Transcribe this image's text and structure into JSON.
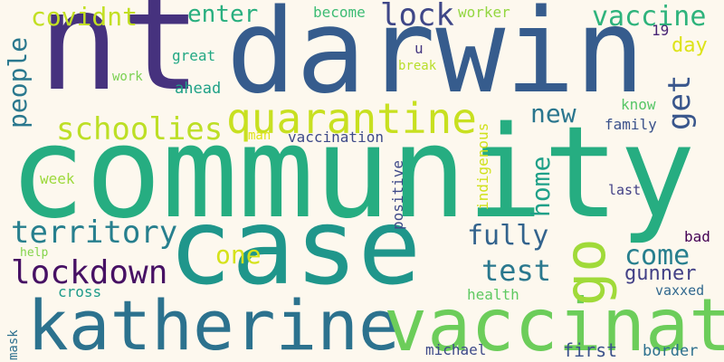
{
  "words": {
    "nt": "nt",
    "darwin": "darwin",
    "community": "community",
    "case": "case",
    "katherine": "katherine",
    "vaccinate": "vaccinate",
    "quarantine": "quarantine",
    "lockdown": "lockdown",
    "schoolies": "schoolies",
    "go": "go",
    "territory": "territory",
    "people": "people",
    "covidnt": "covidnt",
    "enter": "enter",
    "lock": "lock",
    "vaccine": "vaccine",
    "get": "get",
    "new": "new",
    "home": "home",
    "fully": "fully",
    "test": "test",
    "come": "come",
    "one": "one",
    "gunner": "gunner",
    "become": "become",
    "worker": "worker",
    "n19": "19",
    "day": "day",
    "u": "u",
    "great": "great",
    "work": "work",
    "ahead": "ahead",
    "break": "break",
    "know": "know",
    "family": "family",
    "man": "man",
    "vaccination": "vaccination",
    "indigenous": "indigenous",
    "week": "week",
    "positive": "positive",
    "last": "last",
    "help": "help",
    "bad": "bad",
    "cross": "cross",
    "health": "health",
    "vaxxed": "vaxxed",
    "mask": "mask",
    "michael": "michael",
    "first": "first",
    "border": "border"
  }
}
